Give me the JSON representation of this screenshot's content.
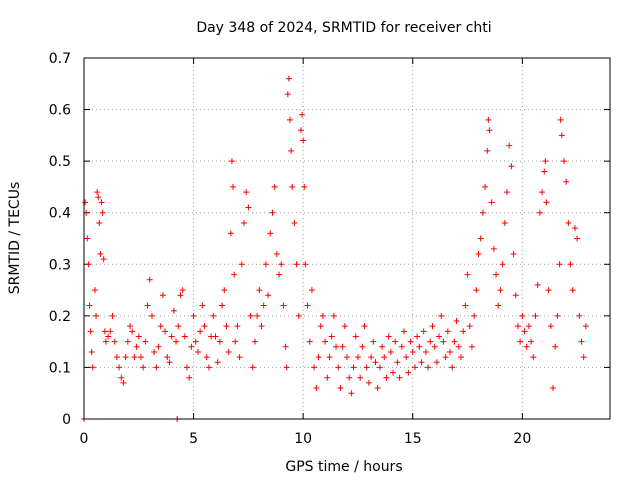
{
  "chart_data": {
    "type": "scatter",
    "title": "Day 348 of 2024, SRMTID for receiver chti",
    "xlabel": "GPS time / hours",
    "ylabel": "SRMTID / TECUs",
    "xlim": [
      0,
      24
    ],
    "ylim": [
      0,
      0.7
    ],
    "xticks": [
      "0",
      "5",
      "10",
      "15",
      "20"
    ],
    "yticks": [
      "0",
      "0.1",
      "0.2",
      "0.3",
      "0.4",
      "0.5",
      "0.6",
      "0.7"
    ],
    "grid": true,
    "marker": "+",
    "color": "#ff0000",
    "series": [
      {
        "name": "SRMTID",
        "points": [
          [
            0.0,
            0.0
          ],
          [
            4.25,
            0.0
          ],
          [
            0.05,
            0.42
          ],
          [
            0.1,
            0.4
          ],
          [
            0.15,
            0.35
          ],
          [
            0.2,
            0.3
          ],
          [
            0.25,
            0.22
          ],
          [
            0.3,
            0.17
          ],
          [
            0.35,
            0.13
          ],
          [
            0.4,
            0.1
          ],
          [
            0.5,
            0.25
          ],
          [
            0.55,
            0.2
          ],
          [
            0.6,
            0.44
          ],
          [
            0.65,
            0.43
          ],
          [
            0.7,
            0.38
          ],
          [
            0.75,
            0.32
          ],
          [
            0.8,
            0.42
          ],
          [
            0.85,
            0.4
          ],
          [
            0.9,
            0.31
          ],
          [
            0.95,
            0.17
          ],
          [
            1.0,
            0.15
          ],
          [
            1.1,
            0.16
          ],
          [
            1.2,
            0.17
          ],
          [
            1.3,
            0.2
          ],
          [
            1.4,
            0.15
          ],
          [
            1.5,
            0.12
          ],
          [
            1.6,
            0.1
          ],
          [
            1.7,
            0.08
          ],
          [
            1.8,
            0.07
          ],
          [
            1.9,
            0.12
          ],
          [
            2.0,
            0.15
          ],
          [
            2.1,
            0.18
          ],
          [
            2.2,
            0.17
          ],
          [
            2.3,
            0.12
          ],
          [
            2.4,
            0.14
          ],
          [
            2.5,
            0.16
          ],
          [
            2.6,
            0.12
          ],
          [
            2.7,
            0.1
          ],
          [
            2.8,
            0.15
          ],
          [
            2.9,
            0.22
          ],
          [
            3.0,
            0.27
          ],
          [
            3.1,
            0.2
          ],
          [
            3.2,
            0.13
          ],
          [
            3.3,
            0.1
          ],
          [
            3.4,
            0.14
          ],
          [
            3.5,
            0.18
          ],
          [
            3.6,
            0.24
          ],
          [
            3.7,
            0.17
          ],
          [
            3.8,
            0.12
          ],
          [
            3.9,
            0.11
          ],
          [
            4.0,
            0.16
          ],
          [
            4.1,
            0.21
          ],
          [
            4.2,
            0.15
          ],
          [
            4.3,
            0.18
          ],
          [
            4.4,
            0.24
          ],
          [
            4.5,
            0.25
          ],
          [
            4.6,
            0.16
          ],
          [
            4.7,
            0.1
          ],
          [
            4.8,
            0.08
          ],
          [
            4.9,
            0.14
          ],
          [
            5.0,
            0.2
          ],
          [
            5.1,
            0.15
          ],
          [
            5.2,
            0.13
          ],
          [
            5.3,
            0.17
          ],
          [
            5.4,
            0.22
          ],
          [
            5.5,
            0.18
          ],
          [
            5.6,
            0.12
          ],
          [
            5.7,
            0.1
          ],
          [
            5.8,
            0.16
          ],
          [
            5.9,
            0.2
          ],
          [
            6.0,
            0.16
          ],
          [
            6.1,
            0.11
          ],
          [
            6.2,
            0.15
          ],
          [
            6.3,
            0.22
          ],
          [
            6.4,
            0.25
          ],
          [
            6.5,
            0.18
          ],
          [
            6.6,
            0.13
          ],
          [
            6.7,
            0.36
          ],
          [
            6.75,
            0.5
          ],
          [
            6.8,
            0.45
          ],
          [
            6.85,
            0.28
          ],
          [
            6.9,
            0.15
          ],
          [
            7.0,
            0.18
          ],
          [
            7.1,
            0.12
          ],
          [
            7.2,
            0.3
          ],
          [
            7.3,
            0.38
          ],
          [
            7.4,
            0.44
          ],
          [
            7.5,
            0.41
          ],
          [
            7.6,
            0.2
          ],
          [
            7.7,
            0.1
          ],
          [
            7.8,
            0.15
          ],
          [
            7.9,
            0.2
          ],
          [
            8.0,
            0.25
          ],
          [
            8.1,
            0.18
          ],
          [
            8.2,
            0.22
          ],
          [
            8.3,
            0.3
          ],
          [
            8.4,
            0.24
          ],
          [
            8.5,
            0.36
          ],
          [
            8.6,
            0.4
          ],
          [
            8.7,
            0.45
          ],
          [
            8.8,
            0.32
          ],
          [
            8.9,
            0.28
          ],
          [
            9.0,
            0.3
          ],
          [
            9.1,
            0.22
          ],
          [
            9.2,
            0.14
          ],
          [
            9.25,
            0.1
          ],
          [
            9.3,
            0.63
          ],
          [
            9.35,
            0.66
          ],
          [
            9.4,
            0.58
          ],
          [
            9.45,
            0.52
          ],
          [
            9.5,
            0.45
          ],
          [
            9.6,
            0.38
          ],
          [
            9.7,
            0.3
          ],
          [
            9.8,
            0.2
          ],
          [
            9.9,
            0.56
          ],
          [
            9.95,
            0.59
          ],
          [
            10.0,
            0.54
          ],
          [
            10.05,
            0.45
          ],
          [
            10.1,
            0.3
          ],
          [
            10.2,
            0.22
          ],
          [
            10.3,
            0.15
          ],
          [
            10.4,
            0.25
          ],
          [
            10.5,
            0.1
          ],
          [
            10.6,
            0.06
          ],
          [
            10.7,
            0.12
          ],
          [
            10.8,
            0.18
          ],
          [
            10.9,
            0.2
          ],
          [
            11.0,
            0.15
          ],
          [
            11.1,
            0.08
          ],
          [
            11.2,
            0.12
          ],
          [
            11.3,
            0.16
          ],
          [
            11.4,
            0.2
          ],
          [
            11.5,
            0.14
          ],
          [
            11.6,
            0.1
          ],
          [
            11.7,
            0.06
          ],
          [
            11.8,
            0.14
          ],
          [
            11.9,
            0.18
          ],
          [
            12.0,
            0.12
          ],
          [
            12.1,
            0.08
          ],
          [
            12.2,
            0.05
          ],
          [
            12.3,
            0.1
          ],
          [
            12.4,
            0.16
          ],
          [
            12.5,
            0.12
          ],
          [
            12.6,
            0.08
          ],
          [
            12.7,
            0.14
          ],
          [
            12.8,
            0.18
          ],
          [
            12.9,
            0.1
          ],
          [
            13.0,
            0.07
          ],
          [
            13.1,
            0.12
          ],
          [
            13.2,
            0.15
          ],
          [
            13.3,
            0.11
          ],
          [
            13.4,
            0.06
          ],
          [
            13.5,
            0.1
          ],
          [
            13.6,
            0.14
          ],
          [
            13.7,
            0.12
          ],
          [
            13.8,
            0.08
          ],
          [
            13.9,
            0.16
          ],
          [
            14.0,
            0.13
          ],
          [
            14.1,
            0.09
          ],
          [
            14.2,
            0.15
          ],
          [
            14.3,
            0.11
          ],
          [
            14.4,
            0.08
          ],
          [
            14.5,
            0.14
          ],
          [
            14.6,
            0.17
          ],
          [
            14.7,
            0.12
          ],
          [
            14.8,
            0.09
          ],
          [
            14.9,
            0.15
          ],
          [
            15.0,
            0.13
          ],
          [
            15.1,
            0.1
          ],
          [
            15.2,
            0.16
          ],
          [
            15.3,
            0.14
          ],
          [
            15.4,
            0.11
          ],
          [
            15.5,
            0.17
          ],
          [
            15.6,
            0.13
          ],
          [
            15.7,
            0.1
          ],
          [
            15.8,
            0.15
          ],
          [
            15.9,
            0.18
          ],
          [
            16.0,
            0.14
          ],
          [
            16.1,
            0.11
          ],
          [
            16.2,
            0.16
          ],
          [
            16.3,
            0.2
          ],
          [
            16.4,
            0.15
          ],
          [
            16.5,
            0.12
          ],
          [
            16.6,
            0.17
          ],
          [
            16.7,
            0.13
          ],
          [
            16.8,
            0.1
          ],
          [
            16.9,
            0.15
          ],
          [
            17.0,
            0.19
          ],
          [
            17.1,
            0.14
          ],
          [
            17.2,
            0.12
          ],
          [
            17.3,
            0.17
          ],
          [
            17.4,
            0.22
          ],
          [
            17.5,
            0.28
          ],
          [
            17.6,
            0.18
          ],
          [
            17.7,
            0.14
          ],
          [
            17.8,
            0.2
          ],
          [
            17.9,
            0.25
          ],
          [
            18.0,
            0.32
          ],
          [
            18.1,
            0.35
          ],
          [
            18.2,
            0.4
          ],
          [
            18.3,
            0.45
          ],
          [
            18.4,
            0.52
          ],
          [
            18.45,
            0.58
          ],
          [
            18.5,
            0.56
          ],
          [
            18.6,
            0.42
          ],
          [
            18.7,
            0.33
          ],
          [
            18.8,
            0.28
          ],
          [
            18.9,
            0.22
          ],
          [
            19.0,
            0.25
          ],
          [
            19.1,
            0.3
          ],
          [
            19.2,
            0.38
          ],
          [
            19.3,
            0.44
          ],
          [
            19.4,
            0.53
          ],
          [
            19.5,
            0.49
          ],
          [
            19.6,
            0.32
          ],
          [
            19.7,
            0.24
          ],
          [
            19.8,
            0.18
          ],
          [
            19.9,
            0.15
          ],
          [
            20.0,
            0.2
          ],
          [
            20.1,
            0.17
          ],
          [
            20.2,
            0.14
          ],
          [
            20.3,
            0.18
          ],
          [
            20.4,
            0.15
          ],
          [
            20.5,
            0.12
          ],
          [
            20.6,
            0.2
          ],
          [
            20.7,
            0.26
          ],
          [
            20.8,
            0.4
          ],
          [
            20.9,
            0.44
          ],
          [
            21.0,
            0.48
          ],
          [
            21.05,
            0.5
          ],
          [
            21.1,
            0.42
          ],
          [
            21.2,
            0.25
          ],
          [
            21.3,
            0.18
          ],
          [
            21.4,
            0.06
          ],
          [
            21.5,
            0.14
          ],
          [
            21.6,
            0.2
          ],
          [
            21.7,
            0.3
          ],
          [
            21.75,
            0.58
          ],
          [
            21.8,
            0.55
          ],
          [
            21.9,
            0.5
          ],
          [
            22.0,
            0.46
          ],
          [
            22.1,
            0.38
          ],
          [
            22.2,
            0.3
          ],
          [
            22.3,
            0.25
          ],
          [
            22.4,
            0.37
          ],
          [
            22.5,
            0.35
          ],
          [
            22.6,
            0.2
          ],
          [
            22.7,
            0.15
          ],
          [
            22.8,
            0.12
          ],
          [
            22.9,
            0.18
          ]
        ]
      }
    ]
  }
}
